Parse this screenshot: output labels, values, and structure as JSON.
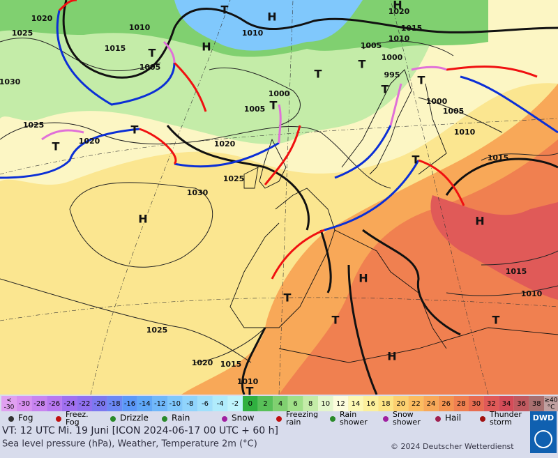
{
  "map": {
    "labels": [
      "1020",
      "1025",
      "1030",
      "1025",
      "1020",
      "1010",
      "1015",
      "1005",
      "1010",
      "1000",
      "1005",
      "1020",
      "1025",
      "1030",
      "1020",
      "1015",
      "1010",
      "1005",
      "1000",
      "995",
      "1000",
      "1005",
      "1010",
      "1015",
      "1015",
      "1010",
      "1025",
      "1020",
      "1015",
      "1010"
    ],
    "centers": [
      "H",
      "H",
      "H",
      "T",
      "T",
      "T",
      "T",
      "T",
      "T",
      "T",
      "T",
      "T",
      "T",
      "H",
      "H",
      "H",
      "T",
      "T",
      "T",
      "H",
      "T"
    ]
  },
  "legend": {
    "low": [
      "<",
      "-30"
    ],
    "high": [
      "≥40",
      "°C"
    ],
    "steps": [
      {
        "label": "-30",
        "color": "#d890f0"
      },
      {
        "label": "-28",
        "color": "#c884f0"
      },
      {
        "label": "-26",
        "color": "#b878f0"
      },
      {
        "label": "-24",
        "color": "#a070f0"
      },
      {
        "label": "-22",
        "color": "#9070f0"
      },
      {
        "label": "-20",
        "color": "#7c78f0"
      },
      {
        "label": "-18",
        "color": "#6c88f4"
      },
      {
        "label": "-16",
        "color": "#5c98f8"
      },
      {
        "label": "-14",
        "color": "#60a8f8"
      },
      {
        "label": "-12",
        "color": "#70b8fa"
      },
      {
        "label": "-10",
        "color": "#80c8fc"
      },
      {
        "label": "-8",
        "color": "#90d4fc"
      },
      {
        "label": "-6",
        "color": "#a0e0fc"
      },
      {
        "label": "-4",
        "color": "#b0ecfc"
      },
      {
        "label": "-2",
        "color": "#c0f4fc"
      },
      {
        "label": "0",
        "color": "#30b040"
      },
      {
        "label": "2",
        "color": "#58c058"
      },
      {
        "label": "4",
        "color": "#80d070"
      },
      {
        "label": "6",
        "color": "#a0e088"
      },
      {
        "label": "8",
        "color": "#c4eca8"
      },
      {
        "label": "10",
        "color": "#e4f6cc"
      },
      {
        "label": "12",
        "color": "#fcfcdc"
      },
      {
        "label": "14",
        "color": "#fcf8b4"
      },
      {
        "label": "16",
        "color": "#fcf09c"
      },
      {
        "label": "18",
        "color": "#fce484"
      },
      {
        "label": "20",
        "color": "#fcd070"
      },
      {
        "label": "22",
        "color": "#fcbc60"
      },
      {
        "label": "24",
        "color": "#f8a858"
      },
      {
        "label": "26",
        "color": "#f49450"
      },
      {
        "label": "28",
        "color": "#f08050"
      },
      {
        "label": "30",
        "color": "#e86c50"
      },
      {
        "label": "32",
        "color": "#e05a58"
      },
      {
        "label": "34",
        "color": "#d44c58"
      },
      {
        "label": "36",
        "color": "#c05a60"
      },
      {
        "label": "38",
        "color": "#a87070"
      }
    ],
    "weather": [
      "Fog",
      [
        "Freez.",
        "Fog"
      ],
      "Drizzle",
      "Rain",
      "Snow",
      [
        "Freezing",
        "rain"
      ],
      [
        "Rain",
        "shower"
      ],
      [
        "Snow",
        "shower"
      ],
      "Hail",
      [
        "Thunder",
        "storm"
      ]
    ]
  },
  "footer": {
    "valid": "VT: 12 UTC Mi.  19 Juni [ICON 2024-06-17  00 UTC + 60 h]",
    "description": "Sea level pressure (hPa), Weather, Temperature 2m (°C)",
    "copyright": "© 2024 Deutscher Wetterdienst",
    "logo": "DWD"
  }
}
